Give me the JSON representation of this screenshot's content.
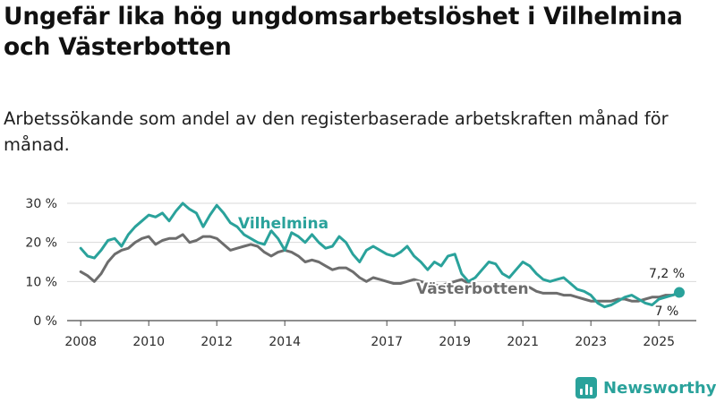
{
  "title": "Ungefär lika hög ungdomsarbetslöshet i Vilhelmina och Västerbotten",
  "subtitle": "Arbetssökande som andel av den registerbaserade arbetskraften månad för månad.",
  "brand": {
    "name": "Newsworthy",
    "icon": "bar-chart-icon",
    "color": "#2aa29b"
  },
  "chart_data": {
    "type": "line",
    "title": "Ungefär lika hög ungdomsarbetslöshet i Vilhelmina och Västerbotten",
    "xlabel": "",
    "ylabel": "",
    "xlim": [
      2007.6,
      2026.1
    ],
    "ylim": [
      0,
      30
    ],
    "grid": true,
    "yticks": [
      {
        "value": 0,
        "label": "0 %"
      },
      {
        "value": 10,
        "label": "10 %"
      },
      {
        "value": 20,
        "label": "20 %"
      },
      {
        "value": 30,
        "label": "30 %"
      }
    ],
    "xticks": [
      {
        "value": 2008,
        "label": "2008"
      },
      {
        "value": 2010,
        "label": "2010"
      },
      {
        "value": 2012,
        "label": "2012"
      },
      {
        "value": 2014,
        "label": "2014"
      },
      {
        "value": 2017,
        "label": "2017"
      },
      {
        "value": 2019,
        "label": "2019"
      },
      {
        "value": 2021,
        "label": "2021"
      },
      {
        "value": 2023,
        "label": "2023"
      },
      {
        "value": 2025,
        "label": "2025"
      }
    ],
    "series": [
      {
        "name": "Vilhelmina",
        "color": "#2aa29b",
        "end_label": "7,2 %",
        "x": [
          2008.0,
          2008.2,
          2008.4,
          2008.6,
          2008.8,
          2009.0,
          2009.2,
          2009.4,
          2009.6,
          2009.8,
          2010.0,
          2010.2,
          2010.4,
          2010.6,
          2010.8,
          2011.0,
          2011.2,
          2011.4,
          2011.6,
          2011.8,
          2012.0,
          2012.2,
          2012.4,
          2012.6,
          2012.8,
          2013.0,
          2013.2,
          2013.4,
          2013.6,
          2013.8,
          2014.0,
          2014.2,
          2014.4,
          2014.6,
          2014.8,
          2015.0,
          2015.2,
          2015.4,
          2015.6,
          2015.8,
          2016.0,
          2016.2,
          2016.4,
          2016.6,
          2016.8,
          2017.0,
          2017.2,
          2017.4,
          2017.6,
          2017.8,
          2018.0,
          2018.2,
          2018.4,
          2018.6,
          2018.8,
          2019.0,
          2019.2,
          2019.4,
          2019.6,
          2019.8,
          2020.0,
          2020.2,
          2020.4,
          2020.6,
          2020.8,
          2021.0,
          2021.2,
          2021.4,
          2021.6,
          2021.8,
          2022.0,
          2022.2,
          2022.4,
          2022.6,
          2022.8,
          2023.0,
          2023.2,
          2023.4,
          2023.6,
          2023.8,
          2024.0,
          2024.2,
          2024.4,
          2024.6,
          2024.8,
          2025.0,
          2025.2,
          2025.4,
          2025.6
        ],
        "values": [
          18.5,
          16.5,
          16,
          18,
          20.5,
          21,
          19,
          22,
          24,
          25.5,
          27,
          26.5,
          27.5,
          25.5,
          28,
          30,
          28.5,
          27.5,
          24,
          27,
          29.5,
          27.5,
          25,
          24,
          22,
          21,
          20,
          19.5,
          23,
          21,
          18,
          22.5,
          21.5,
          20,
          22,
          20,
          18.5,
          19,
          21.5,
          20,
          17,
          15,
          18,
          19,
          18,
          17,
          16.5,
          17.5,
          19,
          16.5,
          15,
          13,
          15,
          14,
          16.5,
          17,
          12,
          10,
          11,
          13,
          15,
          14.5,
          12,
          11,
          13,
          15,
          14,
          12,
          10.5,
          10,
          10.5,
          11,
          9.5,
          8,
          7.5,
          6.5,
          4.5,
          3.5,
          4,
          5,
          6,
          6.5,
          5.5,
          4.5,
          4,
          5.5,
          6,
          6.5,
          7.2
        ]
      },
      {
        "name": "Västerbotten",
        "color": "#6d6d6d",
        "end_label": "7 %",
        "x": [
          2008.0,
          2008.2,
          2008.4,
          2008.6,
          2008.8,
          2009.0,
          2009.2,
          2009.4,
          2009.6,
          2009.8,
          2010.0,
          2010.2,
          2010.4,
          2010.6,
          2010.8,
          2011.0,
          2011.2,
          2011.4,
          2011.6,
          2011.8,
          2012.0,
          2012.2,
          2012.4,
          2012.6,
          2012.8,
          2013.0,
          2013.2,
          2013.4,
          2013.6,
          2013.8,
          2014.0,
          2014.2,
          2014.4,
          2014.6,
          2014.8,
          2015.0,
          2015.2,
          2015.4,
          2015.6,
          2015.8,
          2016.0,
          2016.2,
          2016.4,
          2016.6,
          2016.8,
          2017.0,
          2017.2,
          2017.4,
          2017.6,
          2017.8,
          2018.0,
          2018.2,
          2018.4,
          2018.6,
          2018.8,
          2019.0,
          2019.2,
          2019.4,
          2019.6,
          2019.8,
          2020.0,
          2020.2,
          2020.4,
          2020.6,
          2020.8,
          2021.0,
          2021.2,
          2021.4,
          2021.6,
          2021.8,
          2022.0,
          2022.2,
          2022.4,
          2022.6,
          2022.8,
          2023.0,
          2023.2,
          2023.4,
          2023.6,
          2023.8,
          2024.0,
          2024.2,
          2024.4,
          2024.6,
          2024.8,
          2025.0,
          2025.2,
          2025.4,
          2025.6
        ],
        "values": [
          12.5,
          11.5,
          10,
          12,
          15,
          17,
          18,
          18.5,
          20,
          21,
          21.5,
          19.5,
          20.5,
          21,
          21,
          22,
          20,
          20.5,
          21.5,
          21.5,
          21,
          19.5,
          18,
          18.5,
          19,
          19.5,
          19,
          17.5,
          16.5,
          17.5,
          18,
          17.5,
          16.5,
          15,
          15.5,
          15,
          14,
          13,
          13.5,
          13.5,
          12.5,
          11,
          10,
          11,
          10.5,
          10,
          9.5,
          9.5,
          10,
          10.5,
          10,
          9.5,
          9,
          9,
          9.5,
          10,
          10.5,
          9.5,
          9,
          8.5,
          8.5,
          9,
          8.5,
          8,
          8.5,
          8.5,
          8.5,
          7.5,
          7,
          7,
          7,
          6.5,
          6.5,
          6,
          5.5,
          5,
          5,
          5,
          5,
          5.5,
          5.5,
          5,
          5,
          5.5,
          6,
          6,
          6.5,
          6.5,
          7
        ]
      }
    ]
  }
}
